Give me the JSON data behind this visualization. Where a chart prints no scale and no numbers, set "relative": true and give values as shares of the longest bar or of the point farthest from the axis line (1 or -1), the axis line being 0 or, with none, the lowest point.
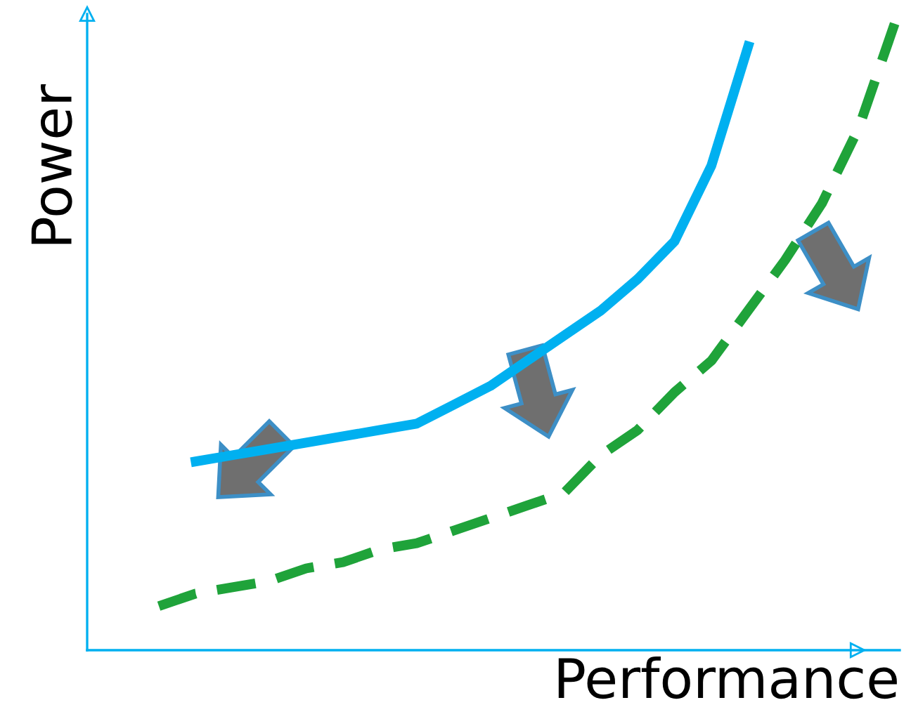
{
  "chart_data": {
    "type": "line",
    "relative": true,
    "xlabel": "Performance",
    "ylabel": "Power",
    "legend": false,
    "marker": "none",
    "categories": [
      null,
      null,
      null,
      null,
      null,
      null,
      null,
      null,
      null,
      null,
      null,
      null,
      null,
      null,
      null,
      null,
      null,
      null,
      null,
      null,
      null
    ],
    "series": [
      {
        "color": "#00b0f0",
        "line_style": "solid",
        "values": [
          null,
          0.3,
          0.31,
          0.32,
          0.33,
          0.34,
          0.35,
          0.36,
          0.39,
          0.42,
          0.46,
          0.5,
          0.54,
          0.59,
          0.65,
          0.77,
          0.96,
          null,
          null,
          null,
          null
        ]
      },
      {
        "color": "#1fa33a",
        "line_style": "dashed",
        "values": [
          0.07,
          0.09,
          0.1,
          0.11,
          0.13,
          0.14,
          0.16,
          0.17,
          0.19,
          0.21,
          0.23,
          0.25,
          0.31,
          0.35,
          0.41,
          0.46,
          0.54,
          0.62,
          0.71,
          0.83,
          1
        ]
      }
    ]
  }
}
